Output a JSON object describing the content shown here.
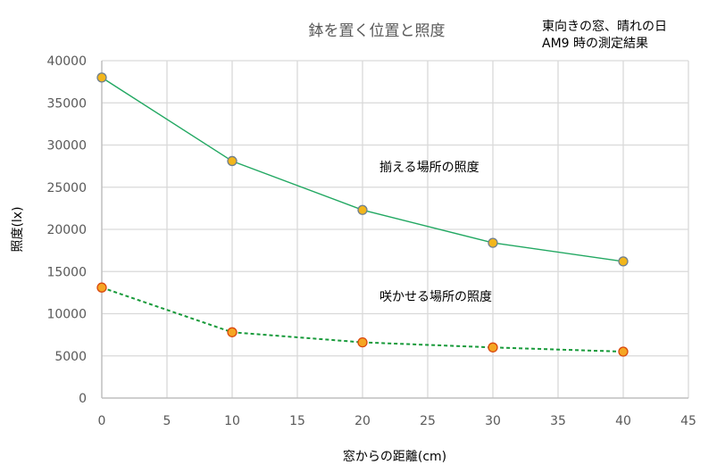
{
  "chart_data": {
    "type": "scatter",
    "title": "鉢を置く位置と照度",
    "annotation_lines": [
      "東向きの窓、晴れの日",
      "AM9 時の測定結果"
    ],
    "xlabel": "窓からの距離(cm)",
    "ylabel": "照度(lx)",
    "xlim": [
      0,
      45
    ],
    "ylim": [
      0,
      40000
    ],
    "xticks": [
      "0",
      "5",
      "10",
      "15",
      "20",
      "25",
      "30",
      "35",
      "40",
      "45"
    ],
    "yticks": [
      "0",
      "5000",
      "10000",
      "15000",
      "20000",
      "25000",
      "30000",
      "35000",
      "40000"
    ],
    "grid": true,
    "legend": "none",
    "series": [
      {
        "name": "揃える場所の照度",
        "x": [
          0,
          10,
          20,
          30,
          40
        ],
        "y": [
          38000,
          28100,
          22300,
          18400,
          16200
        ],
        "line_style": "solid",
        "line_color": "#22a862",
        "marker_fill": "#f2b61c",
        "marker_edge": "#6f7f8f"
      },
      {
        "name": "咲かせる場所の照度",
        "x": [
          0,
          10,
          20,
          30,
          40
        ],
        "y": [
          13100,
          7800,
          6600,
          6000,
          5500
        ],
        "line_style": "dashed",
        "line_color": "#179a3a",
        "marker_fill": "#f5a623",
        "marker_edge": "#d9480f"
      }
    ]
  }
}
